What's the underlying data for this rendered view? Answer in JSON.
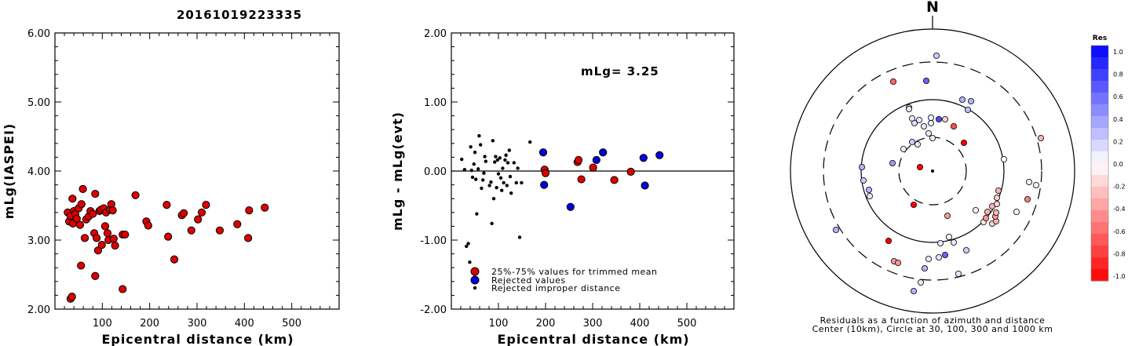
{
  "title": "20161019223335",
  "colors": {
    "red": "#dd0000",
    "blue": "#0000dd",
    "black": "#000000"
  },
  "chart_data": [
    {
      "type": "scatter",
      "id": "left",
      "xlabel": "Epicentral distance (km)",
      "ylabel": "mLg(IASPEI)",
      "xlim": [
        0,
        600
      ],
      "ylim": [
        2.0,
        6.0
      ],
      "xticks": [
        "100",
        "200",
        "300",
        "400",
        "500"
      ],
      "yticks": [
        "2.00",
        "3.00",
        "4.00",
        "5.00",
        "6.00"
      ],
      "points": [
        [
          27,
          3.4
        ],
        [
          30,
          3.27
        ],
        [
          33,
          3.35
        ],
        [
          37,
          3.6
        ],
        [
          38,
          3.24
        ],
        [
          40,
          3.42
        ],
        [
          43,
          3.38
        ],
        [
          46,
          3.31
        ],
        [
          50,
          3.46
        ],
        [
          53,
          3.22
        ],
        [
          56,
          3.52
        ],
        [
          59,
          3.74
        ],
        [
          63,
          3.03
        ],
        [
          66,
          3.3
        ],
        [
          71,
          3.34
        ],
        [
          75,
          3.42
        ],
        [
          80,
          3.38
        ],
        [
          83,
          3.1
        ],
        [
          85,
          3.67
        ],
        [
          88,
          3.03
        ],
        [
          91,
          2.85
        ],
        [
          94,
          3.42
        ],
        [
          97,
          3.44
        ],
        [
          99,
          2.93
        ],
        [
          103,
          3.46
        ],
        [
          106,
          3.2
        ],
        [
          108,
          3.4
        ],
        [
          111,
          3.1
        ],
        [
          113,
          3.0
        ],
        [
          116,
          3.44
        ],
        [
          119,
          3.52
        ],
        [
          122,
          3.43
        ],
        [
          124,
          3.02
        ],
        [
          127,
          2.92
        ],
        [
          143,
          3.08
        ],
        [
          148,
          3.08
        ],
        [
          170,
          3.65
        ],
        [
          193,
          3.27
        ],
        [
          197,
          3.21
        ],
        [
          236,
          3.51
        ],
        [
          239,
          3.05
        ],
        [
          252,
          2.72
        ],
        [
          268,
          3.36
        ],
        [
          272,
          3.39
        ],
        [
          288,
          3.14
        ],
        [
          302,
          3.3
        ],
        [
          310,
          3.4
        ],
        [
          319,
          3.51
        ],
        [
          348,
          3.14
        ],
        [
          385,
          3.23
        ],
        [
          408,
          3.03
        ],
        [
          410,
          3.43
        ],
        [
          443,
          3.47
        ],
        [
          55,
          2.63
        ],
        [
          85,
          2.48
        ],
        [
          143,
          2.29
        ],
        [
          33,
          2.15
        ],
        [
          36,
          2.18
        ]
      ]
    },
    {
      "type": "scatter",
      "id": "middle",
      "xlabel": "Epicentral distance (km)",
      "ylabel": "mLg - mLg(evt)",
      "annotation": "mLg= 3.25",
      "xlim": [
        0,
        600
      ],
      "ylim": [
        -2.0,
        2.0
      ],
      "xticks": [
        "100",
        "200",
        "300",
        "400",
        "500"
      ],
      "yticks": [
        "-2.00",
        "-1.00",
        "0.00",
        "1.00",
        "2.00"
      ],
      "series": [
        {
          "name": "25%-75% values for trimmed mean",
          "style": "red",
          "points": [
            [
              198,
              0.02
            ],
            [
              200,
              -0.03
            ],
            [
              268,
              0.13
            ],
            [
              270,
              0.16
            ],
            [
              276,
              -0.12
            ],
            [
              301,
              0.05
            ],
            [
              346,
              -0.13
            ],
            [
              381,
              -0.01
            ]
          ]
        },
        {
          "name": "Rejected values",
          "style": "blue",
          "points": [
            [
              195,
              0.27
            ],
            [
              197,
              -0.2
            ],
            [
              253,
              -0.52
            ],
            [
              308,
              0.16
            ],
            [
              322,
              0.27
            ],
            [
              408,
              0.19
            ],
            [
              411,
              -0.21
            ],
            [
              442,
              0.23
            ]
          ]
        },
        {
          "name": "Rejected improper distance",
          "style": "black",
          "points": [
            [
              22,
              0.17
            ],
            [
              28,
              0.02
            ],
            [
              32,
              -1.09
            ],
            [
              36,
              -1.05
            ],
            [
              39,
              -1.32
            ],
            [
              41,
              0.35
            ],
            [
              43,
              0.01
            ],
            [
              45,
              -0.09
            ],
            [
              48,
              0.1
            ],
            [
              50,
              0.27
            ],
            [
              52,
              -0.12
            ],
            [
              54,
              -0.62
            ],
            [
              57,
              0.03
            ],
            [
              59,
              0.51
            ],
            [
              62,
              0.38
            ],
            [
              64,
              -0.25
            ],
            [
              67,
              -0.13
            ],
            [
              69,
              -0.03
            ],
            [
              71,
              0.21
            ],
            [
              73,
              0.14
            ],
            [
              81,
              -0.21
            ],
            [
              84,
              -0.16
            ],
            [
              86,
              -0.76
            ],
            [
              88,
              0.44
            ],
            [
              90,
              -0.4
            ],
            [
              92,
              0.13
            ],
            [
              94,
              0.21
            ],
            [
              96,
              -0.24
            ],
            [
              98,
              0.16
            ],
            [
              100,
              -0.04
            ],
            [
              103,
              0.19
            ],
            [
              105,
              -0.1
            ],
            [
              107,
              -0.28
            ],
            [
              109,
              0.04
            ],
            [
              111,
              -0.17
            ],
            [
              114,
              0.16
            ],
            [
              116,
              0.23
            ],
            [
              118,
              -0.21
            ],
            [
              120,
              0.12
            ],
            [
              123,
              0.3
            ],
            [
              125,
              -0.08
            ],
            [
              127,
              -0.32
            ],
            [
              133,
              0.12
            ],
            [
              138,
              -0.17
            ],
            [
              141,
              0.04
            ],
            [
              145,
              -0.96
            ],
            [
              149,
              -0.17
            ],
            [
              167,
              0.42
            ]
          ]
        }
      ]
    },
    {
      "type": "polar",
      "id": "azimuth",
      "north_label": "N",
      "caption_line1": "Residuals as a function of azimuth and distance",
      "caption_line2": "Center (10km), Circle at 30, 100, 300 and 1000 km",
      "colorbar_title": "Res",
      "colorbar_ticks": [
        "1.0",
        "0.8",
        "0.6",
        "0.4",
        "0.2",
        "0.0",
        "-0.2",
        "-0.4",
        "-0.6",
        "-0.8",
        "-1.0"
      ],
      "points_dxdy": [
        [
          5,
          -147,
          0.2
        ],
        [
          -8,
          -115,
          0.6
        ],
        [
          -50,
          -114,
          -0.6
        ],
        [
          -30,
          -81,
          -0.2
        ],
        [
          45,
          -78,
          0.25
        ],
        [
          38,
          -91,
          0.3
        ],
        [
          49,
          -89,
          0.3
        ],
        [
          -30,
          -79,
          0.1
        ],
        [
          -26,
          -67,
          0.1
        ],
        [
          -23,
          -61,
          0.15
        ],
        [
          -17,
          -65,
          0.1
        ],
        [
          -2,
          -68,
          0.05
        ],
        [
          -2,
          -61,
          0.1
        ],
        [
          8,
          -66,
          0.7
        ],
        [
          16,
          -66,
          -0.2
        ],
        [
          27,
          -57,
          -0.7
        ],
        [
          -11,
          -57,
          0.1
        ],
        [
          -5,
          -48,
          0.1
        ],
        [
          -26,
          -37,
          0.2
        ],
        [
          -19,
          -34,
          0.1
        ],
        [
          -37,
          -28,
          0.05
        ],
        [
          -51,
          -10,
          0.4
        ],
        [
          0,
          -42,
          -0.1
        ],
        [
          40,
          -36,
          -1.0
        ],
        [
          91,
          -15,
          0.0
        ],
        [
          138,
          -42,
          -0.3
        ],
        [
          -90,
          -5,
          0.3
        ],
        [
          -88,
          12,
          0.2
        ],
        [
          -81,
          24,
          0.3
        ],
        [
          -80,
          32,
          0.1
        ],
        [
          -123,
          75,
          0.3
        ],
        [
          -56,
          89,
          -1.0
        ],
        [
          -49,
          115,
          -0.4
        ],
        [
          -44,
          117,
          -0.4
        ],
        [
          -24,
          153,
          0.3
        ],
        [
          -15,
          142,
          0.1
        ],
        [
          -10,
          124,
          0.3
        ],
        [
          -5,
          112,
          0.1
        ],
        [
          8,
          110,
          0.1
        ],
        [
          10,
          92,
          0.1
        ],
        [
          16,
          107,
          0.6
        ],
        [
          27,
          91,
          0.1
        ],
        [
          33,
          131,
          0.1
        ],
        [
          43,
          101,
          0.2
        ],
        [
          55,
          50,
          0.05
        ],
        [
          65,
          65,
          -0.1
        ],
        [
          68,
          60,
          -0.4
        ],
        [
          70,
          52,
          -0.3
        ],
        [
          76,
          45,
          -0.3
        ],
        [
          76,
          67,
          -0.2
        ],
        [
          81,
          64,
          -0.3
        ],
        [
          80,
          58,
          -0.4
        ],
        [
          81,
          53,
          -0.3
        ],
        [
          82,
          42,
          -0.2
        ],
        [
          82,
          34,
          -0.2
        ],
        [
          84,
          25,
          -0.3
        ],
        [
          107,
          52,
          0.05
        ],
        [
          121,
          36,
          -0.5
        ],
        [
          123,
          14,
          0.05
        ],
        [
          132,
          18,
          0.05
        ],
        [
          19,
          57,
          -0.4
        ],
        [
          21,
          84,
          0.05
        ],
        [
          -24,
          43,
          -1.0
        ],
        [
          -16,
          -5,
          -1.0
        ]
      ]
    }
  ]
}
